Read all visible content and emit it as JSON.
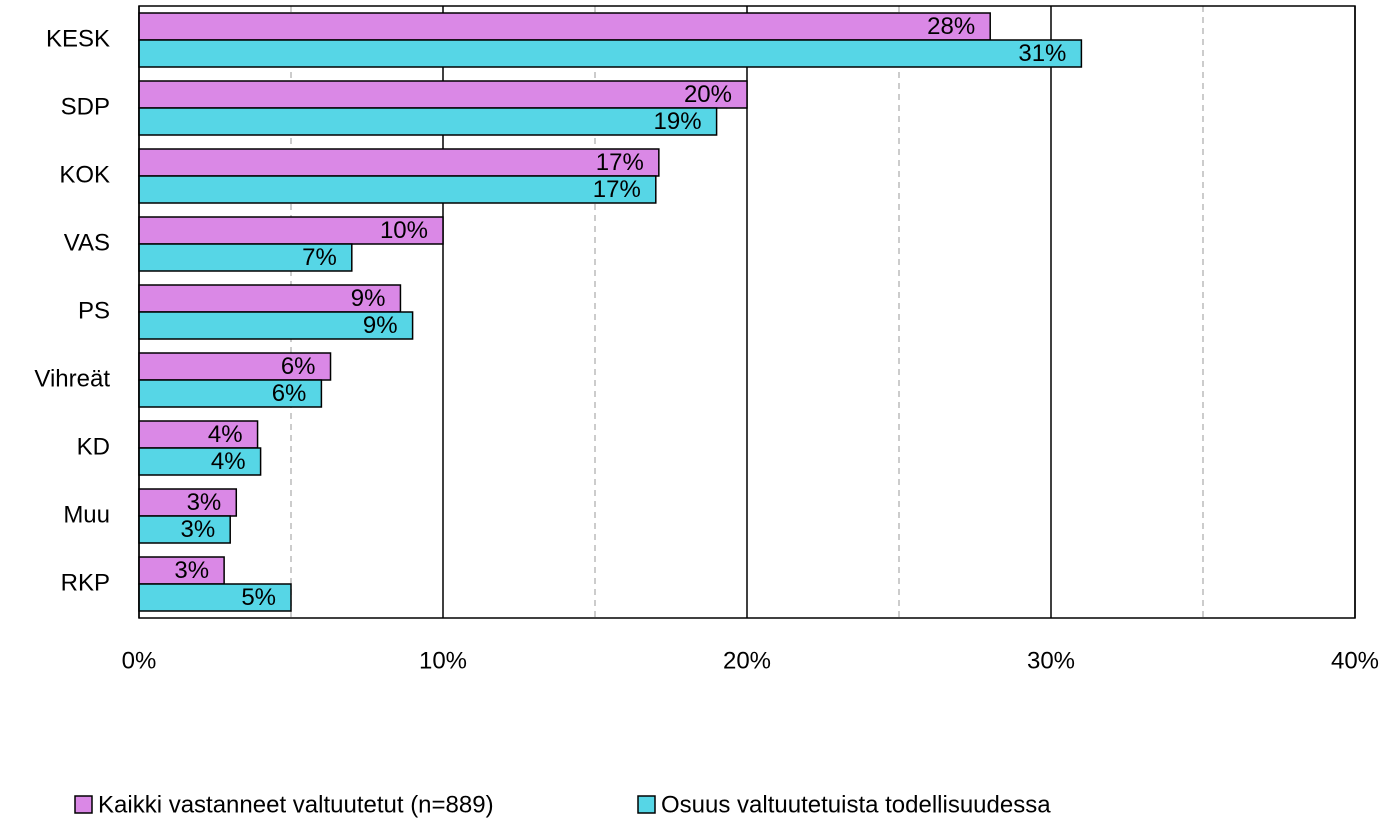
{
  "chart_data": {
    "type": "barh",
    "categories": [
      "KESK",
      "SDP",
      "KOK",
      "VAS",
      "PS",
      "Vihreät",
      "KD",
      "Muu",
      "RKP"
    ],
    "series": [
      {
        "name": "Kaikki vastanneet valtuutetut (n=889)",
        "color": "#da88e6",
        "values": [
          28,
          20,
          17.1,
          10,
          8.6,
          6.3,
          3.9,
          3.2,
          2.8
        ],
        "value_labels": [
          "28%",
          "20%",
          "17%",
          "10%",
          "9%",
          "6%",
          "4%",
          "3%",
          "3%"
        ]
      },
      {
        "name": "Osuus valtuutetuista todellisuudessa",
        "color": "#56d6e6",
        "values": [
          31,
          19,
          17,
          7,
          9,
          6,
          4,
          3,
          5
        ],
        "value_labels": [
          "31%",
          "19%",
          "17%",
          "7%",
          "9%",
          "6%",
          "4%",
          "3%",
          "5%"
        ]
      }
    ],
    "xlim": [
      0,
      40
    ],
    "xticks": [
      {
        "value": 0,
        "label": "0%"
      },
      {
        "value": 10,
        "label": "10%"
      },
      {
        "value": 20,
        "label": "20%"
      },
      {
        "value": 30,
        "label": "30%"
      },
      {
        "value": 40,
        "label": "40%"
      }
    ],
    "minor_grid": [
      5,
      15,
      25,
      35
    ],
    "grid": true,
    "legend": "bottom"
  }
}
